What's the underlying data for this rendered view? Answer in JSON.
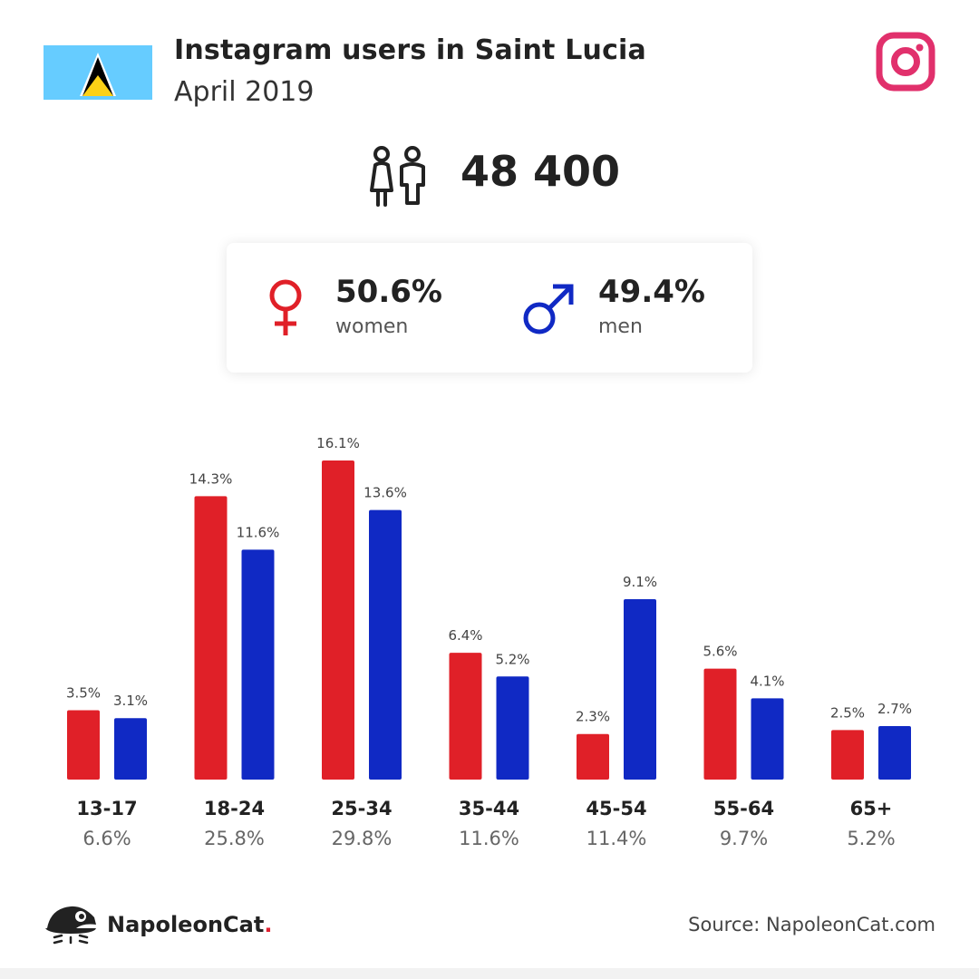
{
  "header": {
    "title": "Instagram users in Saint Lucia",
    "subtitle": "April 2019",
    "flag_icon": "saint-lucia-flag-icon",
    "platform_icon": "instagram-icon"
  },
  "total": {
    "value": "48 400",
    "icon": "users-icon"
  },
  "gender": {
    "women": {
      "percent": "50.6%",
      "label": "women",
      "color": "#e02028",
      "icon": "female-icon"
    },
    "men": {
      "percent": "49.4%",
      "label": "men",
      "color": "#1029c4",
      "icon": "male-icon"
    }
  },
  "chart_data": {
    "type": "bar",
    "categories": [
      "13-17",
      "18-24",
      "25-34",
      "35-44",
      "45-54",
      "55-64",
      "65+"
    ],
    "category_totals": [
      "6.6%",
      "25.8%",
      "29.8%",
      "11.6%",
      "11.4%",
      "9.7%",
      "5.2%"
    ],
    "series": [
      {
        "name": "women",
        "color": "#e02028",
        "values": [
          3.5,
          14.3,
          16.1,
          6.4,
          2.3,
          5.6,
          2.5
        ],
        "labels": [
          "3.5%",
          "14.3%",
          "16.1%",
          "6.4%",
          "2.3%",
          "5.6%",
          "2.5%"
        ]
      },
      {
        "name": "men",
        "color": "#1029c4",
        "values": [
          3.1,
          11.6,
          13.6,
          5.2,
          9.1,
          4.1,
          2.7
        ],
        "labels": [
          "3.1%",
          "11.6%",
          "13.6%",
          "5.2%",
          "9.1%",
          "4.1%",
          "2.7%"
        ]
      }
    ],
    "ylim": [
      0,
      16.1
    ],
    "grid": false,
    "legend": "none"
  },
  "footer": {
    "brand": "NapoleonCat",
    "brand_dot": ".",
    "brand_icon": "napoleoncat-logo-icon",
    "source": "Source: NapoleonCat.com"
  }
}
